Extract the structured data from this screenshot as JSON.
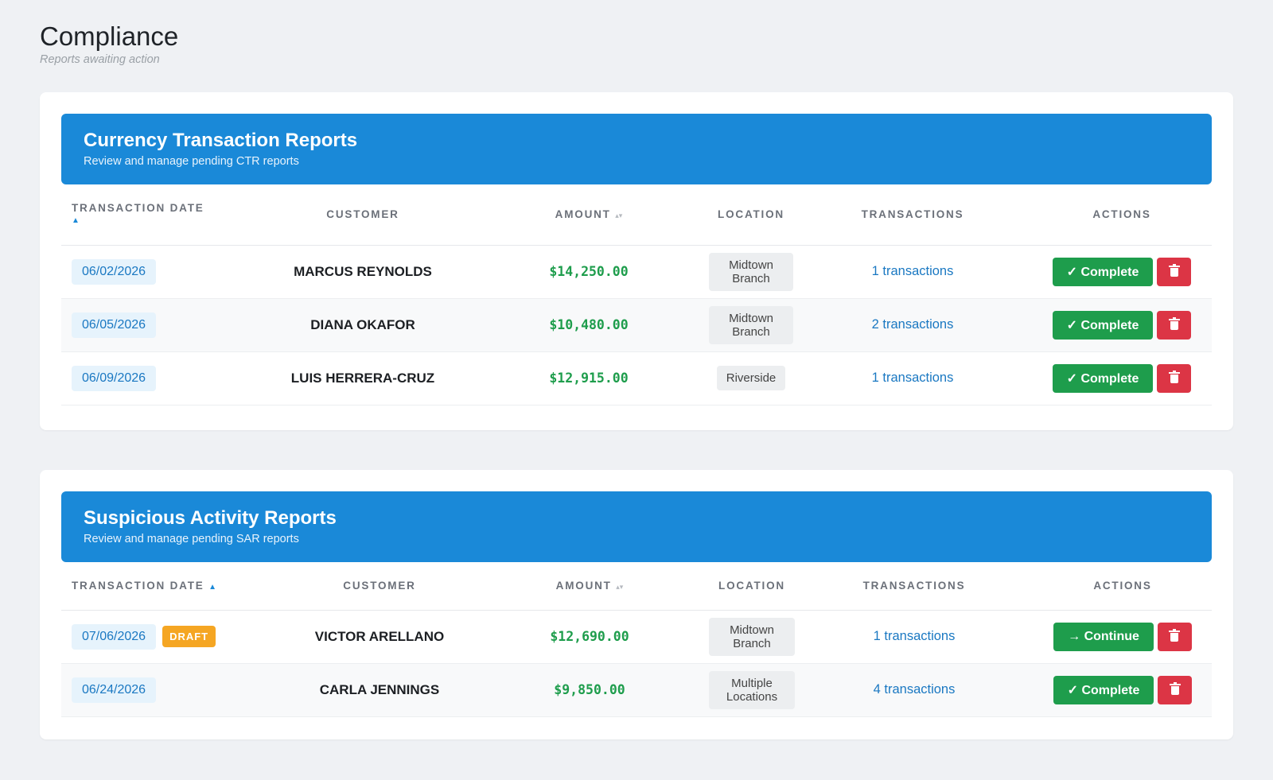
{
  "page": {
    "title": "Compliance",
    "subtitle": "Reports awaiting action"
  },
  "icons": {
    "sort_active": "▲",
    "sort_idle": "▴▾",
    "check": "✓",
    "arrow": "→",
    "delete": "trash-icon"
  },
  "colors": {
    "header_blue": "#1a89d8",
    "success_green": "#1e9d4c",
    "danger_red": "#dc3545",
    "draft_orange": "#f5a623"
  },
  "ctr": {
    "title": "Currency Transaction Reports",
    "description": "Review and manage pending CTR reports",
    "columns": {
      "date": "Transaction Date",
      "customer": "Customer",
      "amount": "Amount",
      "location": "Location",
      "transactions": "Transactions",
      "actions": "Actions"
    },
    "rows": [
      {
        "date": "06/02/2026",
        "customer": "MARCUS REYNOLDS",
        "amount": "$14,250.00",
        "location": "Midtown Branch",
        "transactions": "1 transactions",
        "action": "Complete"
      },
      {
        "date": "06/05/2026",
        "customer": "DIANA OKAFOR",
        "amount": "$10,480.00",
        "location": "Midtown Branch",
        "transactions": "2 transactions",
        "action": "Complete"
      },
      {
        "date": "06/09/2026",
        "customer": "LUIS HERRERA-CRUZ",
        "amount": "$12,915.00",
        "location": "Riverside",
        "transactions": "1 transactions",
        "action": "Complete"
      }
    ]
  },
  "sar": {
    "title": "Suspicious Activity Reports",
    "description": "Review and manage pending SAR reports",
    "columns": {
      "date": "Transaction Date",
      "customer": "Customer",
      "amount": "Amount",
      "location": "Location",
      "transactions": "Transactions",
      "actions": "Actions"
    },
    "rows": [
      {
        "date": "07/06/2026",
        "badge": "DRAFT",
        "customer": "VICTOR ARELLANO",
        "amount": "$12,690.00",
        "location": "Midtown Branch",
        "transactions": "1 transactions",
        "action": "Continue"
      },
      {
        "date": "06/24/2026",
        "customer": "CARLA JENNINGS",
        "amount": "$9,850.00",
        "location": "Multiple Locations",
        "transactions": "4 transactions",
        "action": "Complete"
      }
    ]
  }
}
